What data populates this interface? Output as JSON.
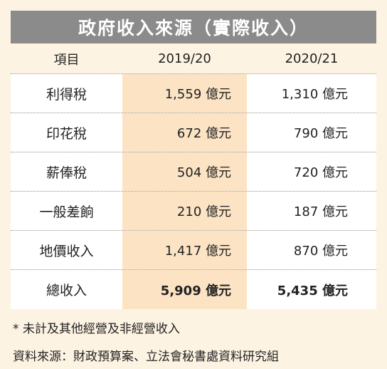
{
  "title": "政府收入來源（實際收入）",
  "headers": [
    "項目",
    "2019/20",
    "2020/21"
  ],
  "rows": [
    {
      "item": "利得稅",
      "y1": "1,559 億元",
      "y2": "1,310 億元"
    },
    {
      "item": "印花稅",
      "y1": "672 億元",
      "y2": "790 億元"
    },
    {
      "item": "薪俸稅",
      "y1": "504 億元",
      "y2": "720 億元"
    },
    {
      "item": "一般差餉",
      "y1": "210 億元",
      "y2": "187 億元"
    },
    {
      "item": "地價收入",
      "y1": "1,417 億元",
      "y2": "870 億元"
    },
    {
      "item": "總收入",
      "y1": "5,909 億元",
      "y2": "5,435 億元"
    }
  ],
  "footnote": "* 未計及其他經營及非經營收入",
  "source": "資料來源：財政預算案、立法會秘書處資料研究組",
  "colors": {
    "title_bg": "#8b8b8b",
    "shade": "#fbe3c4",
    "page_bg": "#fdf3e3"
  }
}
